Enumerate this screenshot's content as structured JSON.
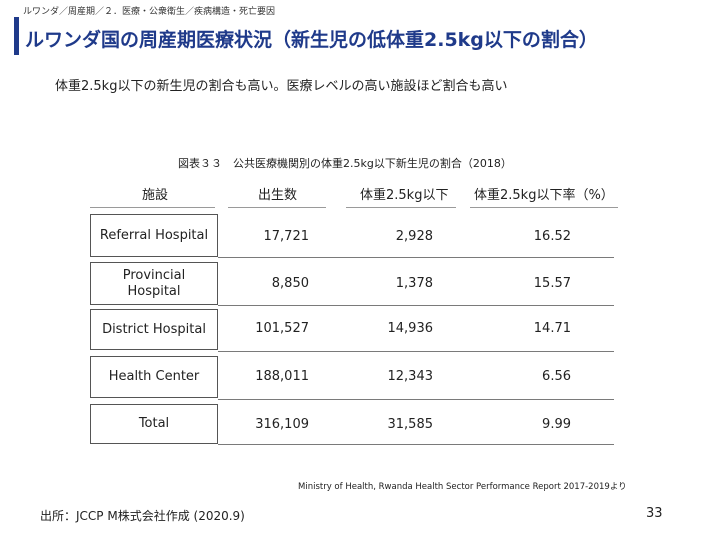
{
  "breadcrumb": "ルワンダ／周産期／２．医療・公衆衛生／疾病構造・死亡要因",
  "title": "ルワンダ国の周産期医療状況（新生児の低体重2.5kg以下の割合）",
  "lead": "体重2.5kg以下の新生児の割合も高い。医療レベルの高い施設ほど割合も高い",
  "table": {
    "caption": "図表３３　公共医療機関別の体重2.5kg以下新生児の割合（2018）",
    "headers": [
      "施設",
      "出生数",
      "体重2.5kg以下",
      "体重2.5kg以下率（%）"
    ],
    "rows": [
      {
        "facility": "Referral Hospital",
        "births": "17,721",
        "low_weight": "2,928",
        "rate": "16.52"
      },
      {
        "facility": "Provincial Hospital",
        "births": "8,850",
        "low_weight": "1,378",
        "rate": "15.57"
      },
      {
        "facility": "District Hospital",
        "births": "101,527",
        "low_weight": "14,936",
        "rate": "14.71"
      },
      {
        "facility": "Health Center",
        "births": "188,011",
        "low_weight": "12,343",
        "rate": "6.56"
      },
      {
        "facility": "Total",
        "births": "316,109",
        "low_weight": "31,585",
        "rate": "9.99"
      }
    ]
  },
  "source_note": "Ministry of Health, Rwanda Health Sector Performance Report 2017-2019より",
  "footer": "出所：JCCP M株式会社作成 (2020.9)",
  "page_number": "33",
  "colors": {
    "accent": "#1f3a8a"
  }
}
